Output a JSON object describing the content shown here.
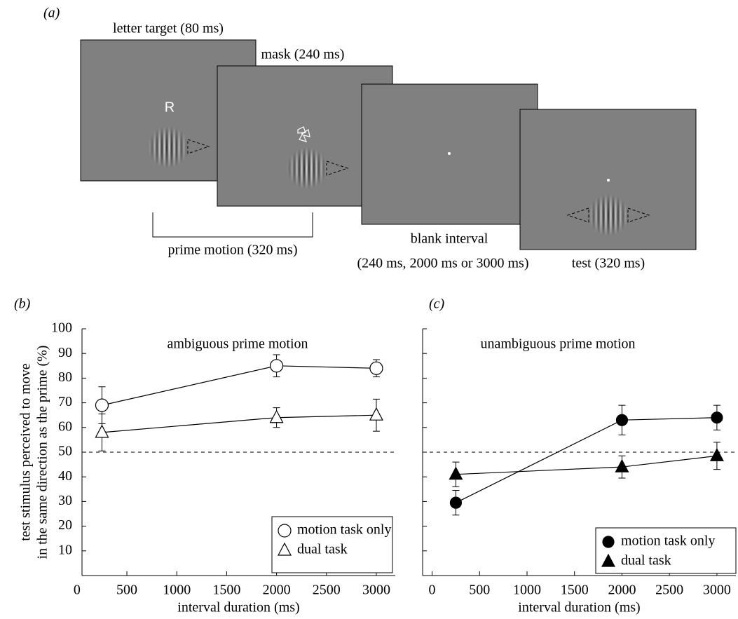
{
  "diagram": {
    "panel": "(a)",
    "target_label": "letter target (80 ms)",
    "letter": "R",
    "mask_label": "mask (240 ms)",
    "prime_label": "prime motion (320 ms)",
    "blank_label": "blank interval",
    "blank_durations": "(240 ms, 2000 ms or 3000 ms)",
    "test_label": "test (320 ms)"
  },
  "chart_data": [
    {
      "type": "line",
      "panel": "(b)",
      "title": "ambiguous prime motion",
      "x_label": "interval duration (ms)",
      "y_label": [
        "test stimulus perceived to move",
        "in the same direction as the prime (%)"
      ],
      "x": [
        250,
        2000,
        3000
      ],
      "xlim": [
        50,
        3190
      ],
      "xticks": [
        0,
        500,
        1000,
        1500,
        2000,
        2500,
        3000
      ],
      "ylim": [
        0,
        100
      ],
      "yticks": [
        10,
        20,
        30,
        40,
        50,
        60,
        70,
        80,
        90,
        100
      ],
      "ytick_labels": true,
      "chance_line": 50,
      "series": [
        {
          "name": "motion task only",
          "marker": "circle",
          "filled": false,
          "color": "#000000",
          "values": [
            69,
            85,
            84
          ],
          "errors": [
            7.5,
            4.5,
            3.5
          ]
        },
        {
          "name": "dual task",
          "marker": "triangle",
          "filled": false,
          "color": "#000000",
          "values": [
            58,
            64,
            65
          ],
          "errors": [
            7.5,
            4,
            6.5
          ]
        }
      ]
    },
    {
      "type": "line",
      "panel": "(c)",
      "title": "unambiguous prime motion",
      "x_label": "interval duration (ms)",
      "x": [
        250,
        2000,
        3000
      ],
      "xlim": [
        -100,
        3200
      ],
      "xticks": [
        0,
        500,
        1000,
        1500,
        2000,
        2500,
        3000
      ],
      "ylim": [
        0,
        100
      ],
      "yticks": [
        10,
        20,
        30,
        40,
        50,
        60,
        70,
        80,
        90,
        100
      ],
      "ytick_labels": false,
      "chance_line": 50,
      "series": [
        {
          "name": "motion task only",
          "marker": "circle",
          "filled": true,
          "color": "#000000",
          "values": [
            29.5,
            63,
            64
          ],
          "errors": [
            5,
            6,
            5
          ]
        },
        {
          "name": "dual task",
          "marker": "triangle",
          "filled": true,
          "color": "#000000",
          "values": [
            41,
            44,
            48.5
          ],
          "errors": [
            5,
            4.5,
            5.5
          ]
        }
      ]
    }
  ]
}
